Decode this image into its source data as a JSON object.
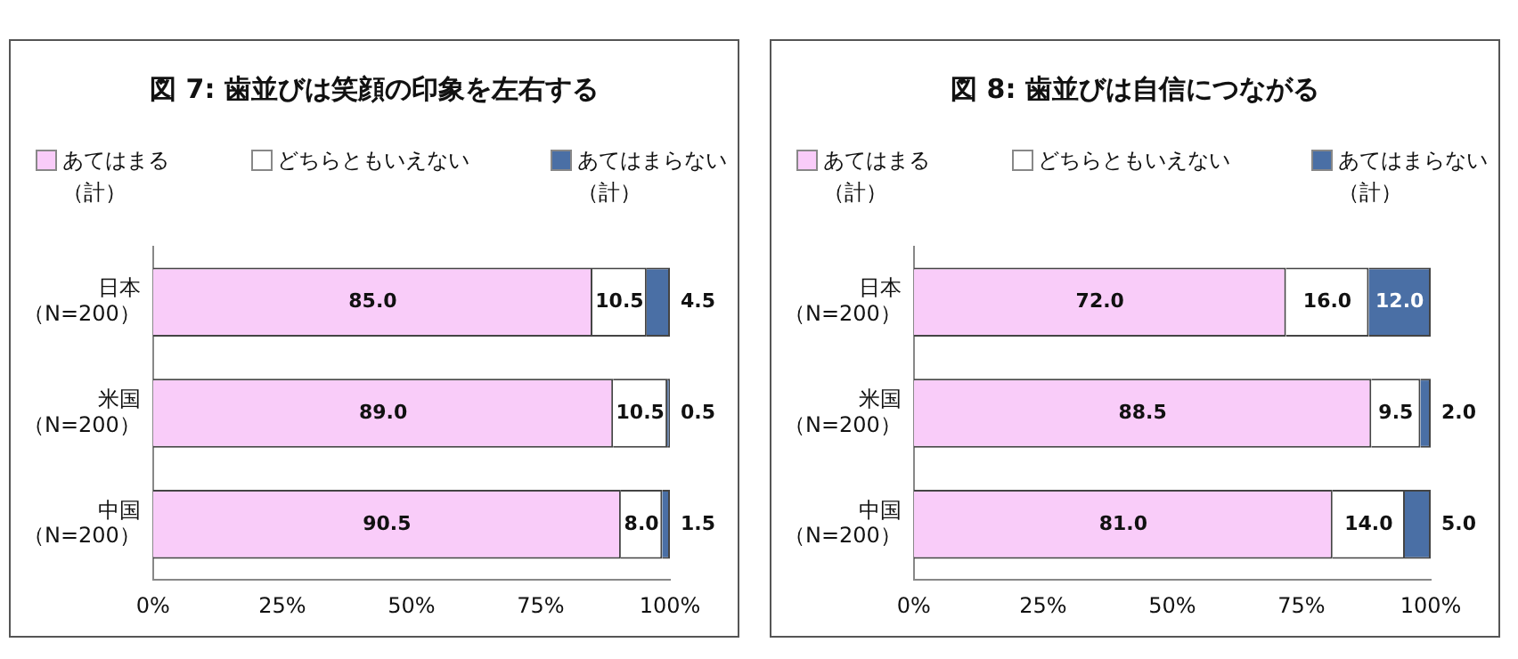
{
  "chart_data": [
    {
      "type": "bar",
      "title": "図 7:  歯並びは笑顔の印象を左右する",
      "orientation": "horizontal",
      "stacked": true,
      "legend": "top",
      "grid": false,
      "categories": [
        "日本（N=200）",
        "米国（N=200）",
        "中国（N=200）"
      ],
      "xlim": [
        0,
        100
      ],
      "xticks": [
        {
          "value": 0,
          "label": "0%"
        },
        {
          "value": 25,
          "label": "25%"
        },
        {
          "value": 50,
          "label": "50%"
        },
        {
          "value": 75,
          "label": "75%"
        },
        {
          "value": 100,
          "label": "100%"
        }
      ],
      "series": [
        {
          "name": "あてはまる（計）",
          "color": "#f9ccf9",
          "values": [
            85.0,
            89.0,
            90.5
          ],
          "value_labels": [
            "85.0",
            "89.0",
            "90.5"
          ]
        },
        {
          "name": "どちらともいえない",
          "color": "#ffffff",
          "values": [
            10.5,
            10.5,
            8.0
          ],
          "value_labels": [
            "10.5",
            "10.5",
            "8.0"
          ]
        },
        {
          "name": "あてはまらない（計）",
          "color": "#4a6fa5",
          "values": [
            4.5,
            0.5,
            1.5
          ],
          "value_labels": [
            "4.5",
            "0.5",
            "1.5"
          ]
        }
      ]
    },
    {
      "type": "bar",
      "title": "図 8:  歯並びは自信につながる",
      "orientation": "horizontal",
      "stacked": true,
      "legend": "top",
      "grid": false,
      "categories": [
        "日本（N=200）",
        "米国（N=200）",
        "中国（N=200）"
      ],
      "xlim": [
        0,
        100
      ],
      "xticks": [
        {
          "value": 0,
          "label": "0%"
        },
        {
          "value": 25,
          "label": "25%"
        },
        {
          "value": 50,
          "label": "50%"
        },
        {
          "value": 75,
          "label": "75%"
        },
        {
          "value": 100,
          "label": "100%"
        }
      ],
      "series": [
        {
          "name": "あてはまる（計）",
          "color": "#f9ccf9",
          "values": [
            72.0,
            88.5,
            81.0
          ],
          "value_labels": [
            "72.0",
            "88.5",
            "81.0"
          ]
        },
        {
          "name": "どちらともいえない",
          "color": "#ffffff",
          "values": [
            16.0,
            9.5,
            14.0
          ],
          "value_labels": [
            "16.0",
            "9.5",
            "14.0"
          ]
        },
        {
          "name": "あてはまらない（計）",
          "color": "#4a6fa5",
          "values": [
            12.0,
            2.0,
            5.0
          ],
          "value_labels": [
            "12.0",
            "2.0",
            "5.0"
          ]
        }
      ]
    }
  ]
}
